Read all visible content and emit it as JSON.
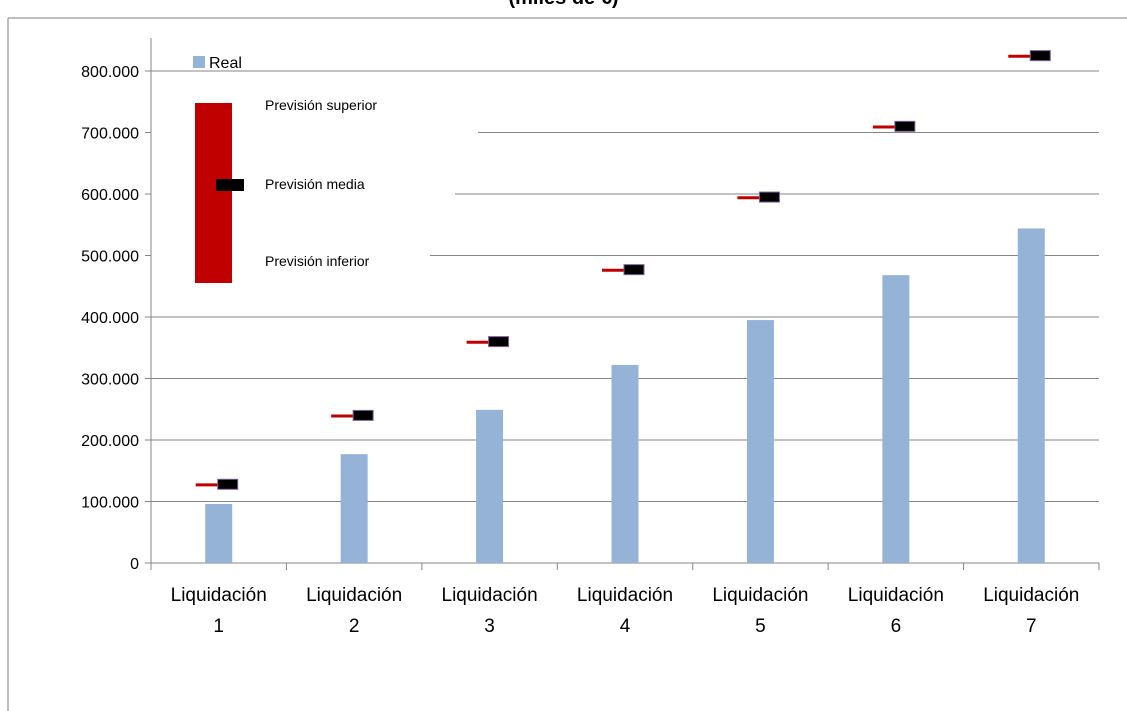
{
  "chart_data": {
    "type": "bar",
    "title": "(miles de €)",
    "categories": [
      [
        "Liquidación",
        "1"
      ],
      [
        "Liquidación",
        "2"
      ],
      [
        "Liquidación",
        "3"
      ],
      [
        "Liquidación",
        "4"
      ],
      [
        "Liquidación",
        "5"
      ],
      [
        "Liquidación",
        "6"
      ],
      [
        "Liquidación",
        "7"
      ]
    ],
    "ylim": [
      0,
      850000
    ],
    "yticks": [
      0,
      100000,
      200000,
      300000,
      400000,
      500000,
      600000,
      700000,
      800000
    ],
    "ytick_labels": [
      "0",
      "100.000",
      "200.000",
      "300.000",
      "400.000",
      "500.000",
      "600.000",
      "700.000",
      "800.000"
    ],
    "grid": true,
    "series": [
      {
        "name": "Real",
        "kind": "bar",
        "color": "#95b3d7",
        "values": [
          96000,
          177000,
          249000,
          322000,
          395000,
          468000,
          544000
        ]
      },
      {
        "name": "Previsión media",
        "kind": "marker",
        "color": "#000000",
        "values": [
          128000,
          240000,
          360000,
          477000,
          595000,
          710000,
          825000
        ]
      }
    ],
    "forecast_line": {
      "color": "#c00000",
      "values": [
        127000,
        239000,
        359000,
        476000,
        594000,
        709000,
        824000
      ]
    },
    "legend": {
      "placement": "top-left",
      "real_label": "Real",
      "upper_label": "Previsión superior",
      "mid_label": "Previsión media",
      "lower_label": "Previsión inferior",
      "box_color": "#c00000",
      "marker_color": "#000000"
    }
  }
}
